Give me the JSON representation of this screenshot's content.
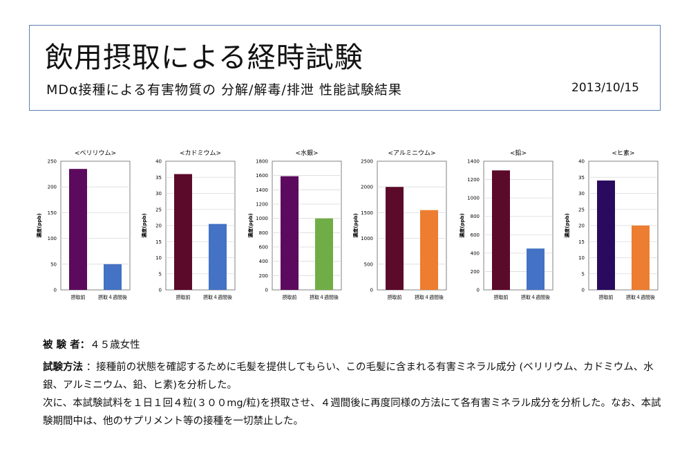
{
  "header": {
    "title": "飲用摂取による経時試験",
    "subtitle": "MDα接種による有害物質の 分解/解毒/排泄 性能試験結果",
    "date": "2013/10/15"
  },
  "chart_data": [
    {
      "type": "bar",
      "title": "<ベリリウム>",
      "ylabel": "濃度(ppb)",
      "categories": [
        "摂取前",
        "摂取４週間後"
      ],
      "values": [
        235,
        50
      ],
      "ylim": [
        0,
        250
      ],
      "yticks": [
        0,
        50,
        100,
        150,
        200,
        250
      ],
      "colors": [
        "#5c0a5e",
        "#4472c4"
      ],
      "grid": true
    },
    {
      "type": "bar",
      "title": "<カドミウム>",
      "ylabel": "濃度(ppb)",
      "categories": [
        "摂取前",
        "摂取４週間後"
      ],
      "values": [
        36,
        20.5
      ],
      "ylim": [
        0,
        40
      ],
      "yticks": [
        0,
        5,
        10,
        15,
        20,
        25,
        30,
        35,
        40
      ],
      "colors": [
        "#5c0a2a",
        "#4472c4"
      ],
      "grid": true
    },
    {
      "type": "bar",
      "title": "<水銀>",
      "ylabel": "濃度(ppb)",
      "categories": [
        "摂取前",
        "摂取４週間後"
      ],
      "values": [
        1590,
        1000
      ],
      "ylim": [
        0,
        1800
      ],
      "yticks": [
        0,
        200,
        400,
        600,
        800,
        1000,
        1200,
        1400,
        1600,
        1800
      ],
      "colors": [
        "#5c0a5e",
        "#70ad47"
      ],
      "grid": true
    },
    {
      "type": "bar",
      "title": "<アルミニウム>",
      "ylabel": "濃度(ppb)",
      "categories": [
        "摂取前",
        "摂取４週間後"
      ],
      "values": [
        2000,
        1550
      ],
      "ylim": [
        0,
        2500
      ],
      "yticks": [
        0,
        500,
        1000,
        1500,
        2000,
        2500
      ],
      "colors": [
        "#5c0a2a",
        "#ed7d31"
      ],
      "grid": true
    },
    {
      "type": "bar",
      "title": "<鉛>",
      "ylabel": "濃度(ppb)",
      "categories": [
        "摂取前",
        "摂取４週間後"
      ],
      "values": [
        1300,
        450
      ],
      "ylim": [
        0,
        1400
      ],
      "yticks": [
        0,
        200,
        400,
        600,
        800,
        1000,
        1200,
        1400
      ],
      "colors": [
        "#5c0a2a",
        "#4472c4"
      ],
      "grid": true
    },
    {
      "type": "bar",
      "title": "<ヒ素>",
      "ylabel": "濃度(ppb)",
      "categories": [
        "摂取前",
        "摂取４週間後"
      ],
      "values": [
        34,
        20
      ],
      "ylim": [
        0,
        40
      ],
      "yticks": [
        0,
        5,
        10,
        15,
        20,
        25,
        30,
        35,
        40
      ],
      "colors": [
        "#2a0a5e",
        "#ed7d31"
      ],
      "grid": true
    }
  ],
  "info": {
    "subject_label": "被 験 者：",
    "subject_value": "４５歳女性",
    "method_label": "試験方法",
    "method_text": " ：接種前の状態を確認するために毛髪を提供してもらい、この毛髪に含まれる有害ミネラル成分 (ベリリウム、カドミウム、水銀、アルミニウム、鉛、ヒ素)を分析した。",
    "method_text2": "次に、本試験試料を１日１回４粒(３００mg/粒)を摂取させ、４週間後に再度同様の方法にて各有害ミネラル成分を分析した。なお、本試験期間中は、他のサプリメント等の接種を一切禁止した。"
  }
}
